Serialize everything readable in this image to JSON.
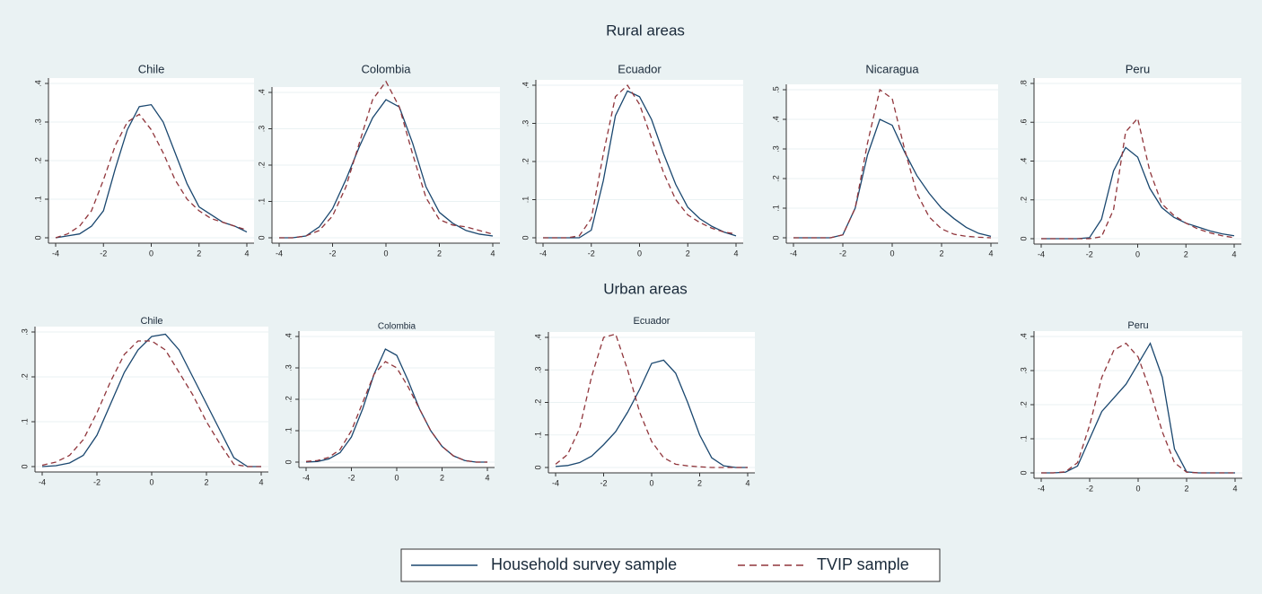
{
  "sections": [
    {
      "title": "Rural areas"
    },
    {
      "title": "Urban areas"
    }
  ],
  "chart_data": [
    {
      "type": "line",
      "title": "Chile",
      "x": [
        -4,
        -3.5,
        -3,
        -2.5,
        -2,
        -1.5,
        -1,
        -0.5,
        0,
        0.5,
        1,
        1.5,
        2,
        2.5,
        3,
        3.5,
        4
      ],
      "xlim": [
        -4,
        4
      ],
      "xticks": [
        -4,
        -2,
        0,
        2,
        4
      ],
      "ylim": [
        0,
        0.4
      ],
      "yticks": [
        0,
        {
          "value": 0.1,
          "label": ".1"
        },
        {
          "value": 0.2,
          "label": ".2"
        },
        {
          "value": 0.3,
          "label": ".3"
        },
        {
          "value": 0.4,
          "label": ".4"
        }
      ],
      "grid": true,
      "series": [
        {
          "name": "Household survey sample",
          "color": "#1a476f",
          "dash": "solid",
          "values": [
            0,
            0.005,
            0.01,
            0.03,
            0.07,
            0.18,
            0.28,
            0.34,
            0.345,
            0.3,
            0.22,
            0.14,
            0.08,
            0.06,
            0.04,
            0.03,
            0.015
          ]
        },
        {
          "name": "TVIP sample",
          "color": "#90353b",
          "dash": "dashed",
          "values": [
            0,
            0.01,
            0.03,
            0.07,
            0.15,
            0.24,
            0.3,
            0.32,
            0.28,
            0.22,
            0.15,
            0.1,
            0.07,
            0.05,
            0.04,
            0.03,
            0.02
          ]
        }
      ]
    },
    {
      "type": "line",
      "title": "Colombia",
      "x": [
        -4,
        -3.5,
        -3,
        -2.5,
        -2,
        -1.5,
        -1,
        -0.5,
        0,
        0.5,
        1,
        1.5,
        2,
        2.5,
        3,
        3.5,
        4
      ],
      "xlim": [
        -4,
        4
      ],
      "xticks": [
        -4,
        -2,
        0,
        2,
        4
      ],
      "ylim": [
        0,
        0.4
      ],
      "yticks": [
        0,
        {
          "value": 0.1,
          "label": ".1"
        },
        {
          "value": 0.2,
          "label": ".2"
        },
        {
          "value": 0.3,
          "label": ".3"
        },
        {
          "value": 0.4,
          "label": ".4"
        }
      ],
      "grid": true,
      "series": [
        {
          "name": "Household survey sample",
          "color": "#1a476f",
          "dash": "solid",
          "values": [
            0,
            0,
            0.005,
            0.03,
            0.08,
            0.16,
            0.25,
            0.33,
            0.38,
            0.36,
            0.26,
            0.14,
            0.07,
            0.04,
            0.02,
            0.01,
            0.005
          ]
        },
        {
          "name": "TVIP sample",
          "color": "#90353b",
          "dash": "dashed",
          "values": [
            0,
            0,
            0.005,
            0.02,
            0.06,
            0.14,
            0.26,
            0.38,
            0.43,
            0.36,
            0.23,
            0.11,
            0.05,
            0.035,
            0.03,
            0.02,
            0.01
          ]
        }
      ]
    },
    {
      "type": "line",
      "title": "Ecuador",
      "x": [
        -4,
        -3.5,
        -3,
        -2.5,
        -2,
        -1.5,
        -1,
        -0.5,
        0,
        0.5,
        1,
        1.5,
        2,
        2.5,
        3,
        3.5,
        4
      ],
      "xlim": [
        -4,
        4
      ],
      "xticks": [
        -4,
        -2,
        0,
        2,
        4
      ],
      "ylim": [
        0,
        0.4
      ],
      "yticks": [
        0,
        {
          "value": 0.1,
          "label": ".1"
        },
        {
          "value": 0.2,
          "label": ".2"
        },
        {
          "value": 0.3,
          "label": ".3"
        },
        {
          "value": 0.4,
          "label": ".4"
        }
      ],
      "grid": true,
      "series": [
        {
          "name": "Household survey sample",
          "color": "#1a476f",
          "dash": "solid",
          "values": [
            0,
            0,
            0,
            0,
            0.02,
            0.15,
            0.32,
            0.385,
            0.37,
            0.31,
            0.22,
            0.14,
            0.08,
            0.05,
            0.03,
            0.015,
            0.005
          ]
        },
        {
          "name": "TVIP sample",
          "color": "#90353b",
          "dash": "dashed",
          "values": [
            0,
            0,
            0,
            0.005,
            0.05,
            0.22,
            0.37,
            0.4,
            0.35,
            0.26,
            0.17,
            0.1,
            0.06,
            0.04,
            0.025,
            0.015,
            0.01
          ]
        }
      ]
    },
    {
      "type": "line",
      "title": "Nicaragua",
      "x": [
        -4,
        -3.5,
        -3,
        -2.5,
        -2,
        -1.5,
        -1,
        -0.5,
        0,
        0.5,
        1,
        1.5,
        2,
        2.5,
        3,
        3.5,
        4
      ],
      "xlim": [
        -4,
        4
      ],
      "xticks": [
        -4,
        -2,
        0,
        2,
        4
      ],
      "ylim": [
        0,
        0.5
      ],
      "yticks": [
        0,
        {
          "value": 0.1,
          "label": ".1"
        },
        {
          "value": 0.2,
          "label": ".2"
        },
        {
          "value": 0.3,
          "label": ".3"
        },
        {
          "value": 0.4,
          "label": ".4"
        },
        {
          "value": 0.5,
          "label": ".5"
        }
      ],
      "grid": true,
      "series": [
        {
          "name": "Household survey sample",
          "color": "#1a476f",
          "dash": "solid",
          "values": [
            0,
            0,
            0,
            0,
            0.01,
            0.1,
            0.28,
            0.4,
            0.38,
            0.29,
            0.21,
            0.15,
            0.1,
            0.065,
            0.035,
            0.015,
            0.005
          ]
        },
        {
          "name": "TVIP sample",
          "color": "#90353b",
          "dash": "dashed",
          "values": [
            0,
            0,
            0,
            0,
            0.01,
            0.1,
            0.32,
            0.5,
            0.47,
            0.3,
            0.15,
            0.07,
            0.03,
            0.012,
            0.005,
            0.002,
            0
          ]
        }
      ]
    },
    {
      "type": "line",
      "title": "Peru",
      "x": [
        -4,
        -3.5,
        -3,
        -2.5,
        -2,
        -1.5,
        -1,
        -0.5,
        0,
        0.5,
        1,
        1.5,
        2,
        2.5,
        3,
        3.5,
        4
      ],
      "xlim": [
        -4,
        4
      ],
      "xticks": [
        -4,
        -2,
        0,
        2,
        4
      ],
      "ylim": [
        0,
        0.8
      ],
      "yticks": [
        0,
        {
          "value": 0.2,
          "label": ".2"
        },
        {
          "value": 0.4,
          "label": ".4"
        },
        {
          "value": 0.6,
          "label": ".6"
        },
        {
          "value": 0.8,
          "label": ".8"
        }
      ],
      "grid": true,
      "series": [
        {
          "name": "Household survey sample",
          "color": "#1a476f",
          "dash": "solid",
          "values": [
            0,
            0,
            0,
            0,
            0.005,
            0.1,
            0.35,
            0.47,
            0.42,
            0.26,
            0.16,
            0.11,
            0.08,
            0.06,
            0.04,
            0.025,
            0.015
          ]
        },
        {
          "name": "TVIP sample",
          "color": "#90353b",
          "dash": "dashed",
          "values": [
            0,
            0,
            0,
            0,
            0,
            0.01,
            0.15,
            0.55,
            0.62,
            0.35,
            0.18,
            0.12,
            0.08,
            0.05,
            0.03,
            0.015,
            0.005
          ]
        }
      ]
    },
    {
      "type": "line",
      "title": "Chile",
      "x": [
        -4,
        -3.5,
        -3,
        -2.5,
        -2,
        -1.5,
        -1,
        -0.5,
        0,
        0.5,
        1,
        1.5,
        2,
        2.5,
        3,
        3.5,
        4
      ],
      "xlim": [
        -4,
        4
      ],
      "xticks": [
        -4,
        -2,
        0,
        2,
        4
      ],
      "ylim": [
        0,
        0.3
      ],
      "yticks": [
        0,
        {
          "value": 0.1,
          "label": ".1"
        },
        {
          "value": 0.2,
          "label": ".2"
        },
        {
          "value": 0.3,
          "label": ".3"
        }
      ],
      "grid": true,
      "series": [
        {
          "name": "Household survey sample",
          "color": "#1a476f",
          "dash": "solid",
          "values": [
            0,
            0.002,
            0.008,
            0.025,
            0.07,
            0.14,
            0.21,
            0.26,
            0.29,
            0.295,
            0.26,
            0.2,
            0.14,
            0.08,
            0.02,
            0,
            0
          ]
        },
        {
          "name": "TVIP sample",
          "color": "#90353b",
          "dash": "dashed",
          "values": [
            0.003,
            0.01,
            0.025,
            0.06,
            0.12,
            0.19,
            0.25,
            0.28,
            0.28,
            0.26,
            0.21,
            0.16,
            0.1,
            0.05,
            0.005,
            0,
            0
          ]
        }
      ]
    },
    {
      "type": "line",
      "title": "Colombia",
      "x": [
        -4,
        -3.5,
        -3,
        -2.5,
        -2,
        -1.5,
        -1,
        -0.5,
        0,
        0.5,
        1,
        1.5,
        2,
        2.5,
        3,
        3.5,
        4
      ],
      "xlim": [
        -4,
        4
      ],
      "xticks": [
        -4,
        -2,
        0,
        2,
        4
      ],
      "ylim": [
        0,
        0.4
      ],
      "yticks": [
        0,
        {
          "value": 0.1,
          "label": ".1"
        },
        {
          "value": 0.2,
          "label": ".2"
        },
        {
          "value": 0.3,
          "label": ".3"
        },
        {
          "value": 0.4,
          "label": ".4"
        }
      ],
      "grid": true,
      "series": [
        {
          "name": "Household survey sample",
          "color": "#1a476f",
          "dash": "solid",
          "values": [
            0,
            0.002,
            0.01,
            0.03,
            0.08,
            0.17,
            0.28,
            0.36,
            0.34,
            0.26,
            0.17,
            0.1,
            0.05,
            0.02,
            0.005,
            0,
            0
          ]
        },
        {
          "name": "TVIP sample",
          "color": "#90353b",
          "dash": "dashed",
          "values": [
            0.002,
            0.005,
            0.015,
            0.04,
            0.1,
            0.19,
            0.28,
            0.32,
            0.3,
            0.24,
            0.17,
            0.1,
            0.05,
            0.02,
            0.005,
            0,
            0
          ]
        }
      ]
    },
    {
      "type": "line",
      "title": "Ecuador",
      "x": [
        -4,
        -3.5,
        -3,
        -2.5,
        -2,
        -1.5,
        -1,
        -0.5,
        0,
        0.5,
        1,
        1.5,
        2,
        2.5,
        3,
        3.5,
        4
      ],
      "xlim": [
        -4,
        4
      ],
      "xticks": [
        -4,
        -2,
        0,
        2,
        4
      ],
      "ylim": [
        0,
        0.4
      ],
      "yticks": [
        0,
        {
          "value": 0.1,
          "label": ".1"
        },
        {
          "value": 0.2,
          "label": ".2"
        },
        {
          "value": 0.3,
          "label": ".3"
        },
        {
          "value": 0.4,
          "label": ".4"
        }
      ],
      "grid": true,
      "series": [
        {
          "name": "Household survey sample",
          "color": "#1a476f",
          "dash": "solid",
          "values": [
            0.003,
            0.006,
            0.015,
            0.035,
            0.07,
            0.11,
            0.17,
            0.24,
            0.32,
            0.33,
            0.29,
            0.2,
            0.1,
            0.03,
            0.005,
            0,
            0
          ]
        },
        {
          "name": "TVIP sample",
          "color": "#90353b",
          "dash": "dashed",
          "values": [
            0.01,
            0.04,
            0.12,
            0.28,
            0.4,
            0.41,
            0.3,
            0.17,
            0.08,
            0.03,
            0.01,
            0.005,
            0.002,
            0,
            0,
            0,
            0
          ]
        }
      ]
    },
    {
      "type": "line",
      "title": "Peru",
      "x": [
        -4,
        -3.5,
        -3,
        -2.5,
        -2,
        -1.5,
        -1,
        -0.5,
        0,
        0.5,
        1,
        1.5,
        2,
        2.5,
        3,
        3.5,
        4
      ],
      "xlim": [
        -4,
        4
      ],
      "xticks": [
        -4,
        -2,
        0,
        2,
        4
      ],
      "ylim": [
        0,
        0.4
      ],
      "yticks": [
        0,
        {
          "value": 0.1,
          "label": ".1"
        },
        {
          "value": 0.2,
          "label": ".2"
        },
        {
          "value": 0.3,
          "label": ".3"
        },
        {
          "value": 0.4,
          "label": ".4"
        }
      ],
      "grid": true,
      "series": [
        {
          "name": "Household survey sample",
          "color": "#1a476f",
          "dash": "solid",
          "values": [
            0,
            0,
            0.002,
            0.02,
            0.1,
            0.18,
            0.22,
            0.26,
            0.32,
            0.38,
            0.28,
            0.07,
            0.003,
            0,
            0,
            0,
            0
          ]
        },
        {
          "name": "TVIP sample",
          "color": "#90353b",
          "dash": "dashed",
          "values": [
            0,
            0,
            0.003,
            0.03,
            0.14,
            0.28,
            0.36,
            0.38,
            0.34,
            0.24,
            0.12,
            0.03,
            0.002,
            0,
            0,
            0,
            0
          ]
        }
      ]
    }
  ]
}
